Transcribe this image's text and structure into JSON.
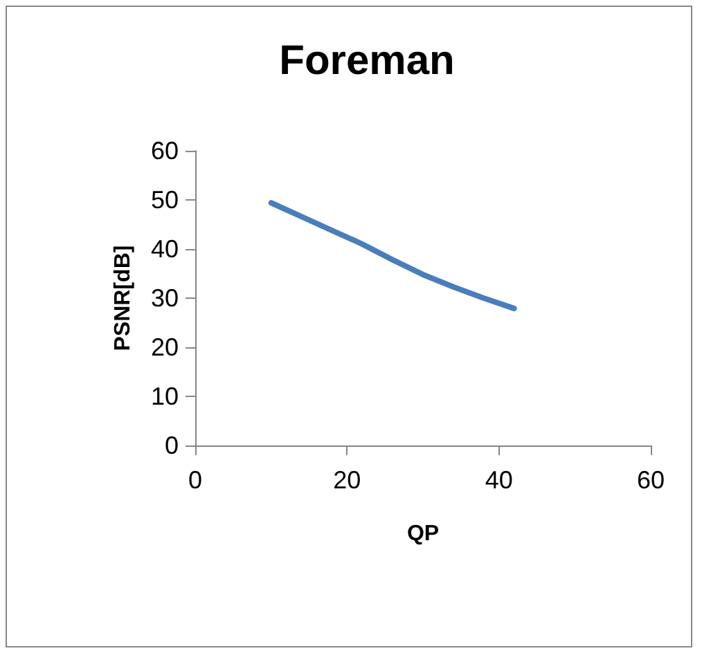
{
  "chart_data": {
    "type": "line",
    "title": "Foreman",
    "xlabel": "QP",
    "ylabel": "PSNR[dB]",
    "series": [
      {
        "color": "#4a7ebb",
        "x": [
          10,
          14,
          18,
          22,
          26,
          30,
          34,
          38,
          42
        ],
        "values": [
          49.4,
          46.6,
          43.8,
          41,
          37.8,
          34.8,
          32.3,
          30,
          27.9
        ]
      }
    ],
    "xlim": [
      0,
      60
    ],
    "xticks": [
      0,
      20,
      40,
      60
    ],
    "ylim": [
      0,
      60
    ],
    "yticks": [
      0,
      10,
      20,
      30,
      40,
      50,
      60
    ],
    "grid": false,
    "marker": "none",
    "line_style": "solid"
  }
}
